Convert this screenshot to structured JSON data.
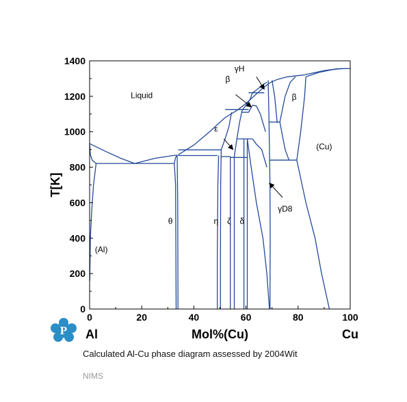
{
  "chart_data": {
    "type": "phase-diagram",
    "title": "",
    "xlabel": "Mol%(Cu)",
    "ylabel": "T[K]",
    "x_left_label": "Al",
    "x_right_label": "Cu",
    "xlim": [
      0,
      100
    ],
    "ylim": [
      0,
      1400
    ],
    "xticks": [
      0,
      20,
      40,
      60,
      80,
      100
    ],
    "yticks": [
      0,
      200,
      400,
      600,
      800,
      1000,
      1200,
      1400
    ],
    "grid": false,
    "line_color": "#22499a",
    "phase_labels": [
      {
        "text": "Liquid",
        "x": 20,
        "y": 1190
      },
      {
        "text": "(Al)",
        "x": 4.5,
        "y": 320
      },
      {
        "text": "(Cu)",
        "x": 90,
        "y": 900
      },
      {
        "text": "θ",
        "x": 31,
        "y": 480
      },
      {
        "text": "η",
        "x": 48.5,
        "y": 480
      },
      {
        "text": "ζ",
        "x": 53.5,
        "y": 480
      },
      {
        "text": "δ",
        "x": 58.5,
        "y": 480
      },
      {
        "text": "ε",
        "x": 48.5,
        "y": 1000
      },
      {
        "text": "β",
        "x": 53,
        "y": 1280
      },
      {
        "text": "γH",
        "x": 57.5,
        "y": 1340
      },
      {
        "text": "β",
        "x": 78.5,
        "y": 1180
      },
      {
        "text": "γD8",
        "x": 75,
        "y": 550
      }
    ],
    "annotation_arrows": [
      {
        "label": "β",
        "from": [
          56,
          1210
        ],
        "to": [
          62,
          1140
        ]
      },
      {
        "label": "γH",
        "from": [
          64,
          1310
        ],
        "to": [
          67,
          1240
        ]
      },
      {
        "label": "ε",
        "from": [
          51.5,
          960
        ],
        "to": [
          55,
          900
        ]
      },
      {
        "label": "γD8",
        "from": [
          74,
          630
        ],
        "to": [
          69,
          710
        ]
      }
    ],
    "phase_boundaries": [
      {
        "name": "liquidus-al-side",
        "points": [
          [
            0,
            933
          ],
          [
            6,
            890
          ],
          [
            12,
            850
          ],
          [
            17.3,
            821
          ]
        ]
      },
      {
        "name": "liquidus-theta",
        "points": [
          [
            17.3,
            821
          ],
          [
            25,
            850
          ],
          [
            32,
            866
          ],
          [
            33.5,
            868
          ]
        ]
      },
      {
        "name": "liquidus-mid",
        "points": [
          [
            34,
            870
          ],
          [
            40,
            925
          ],
          [
            46,
            1000
          ],
          [
            52,
            1080
          ],
          [
            57,
            1125
          ],
          [
            60,
            1160
          ],
          [
            63,
            1200
          ],
          [
            66,
            1240
          ],
          [
            69,
            1275
          ],
          [
            72,
            1295
          ],
          [
            76,
            1310
          ],
          [
            82,
            1320
          ],
          [
            90,
            1345
          ],
          [
            95,
            1355
          ],
          [
            100,
            1357
          ]
        ]
      },
      {
        "name": "solidus-cu",
        "points": [
          [
            83,
            1310
          ],
          [
            88,
            1335
          ],
          [
            93,
            1350
          ],
          [
            97,
            1357
          ]
        ]
      },
      {
        "name": "eutectic-al-theta",
        "points": [
          [
            2.5,
            821
          ],
          [
            32.5,
            821
          ]
        ]
      },
      {
        "name": "al-solidus",
        "points": [
          [
            0,
            933
          ],
          [
            0.3,
            870
          ],
          [
            1,
            840
          ],
          [
            2.5,
            821
          ]
        ]
      },
      {
        "name": "al-solvus",
        "points": [
          [
            2.5,
            821
          ],
          [
            1.5,
            700
          ],
          [
            0.8,
            550
          ],
          [
            0.3,
            400
          ],
          [
            0.05,
            160
          ]
        ]
      },
      {
        "name": "theta-left",
        "points": [
          [
            32.5,
            821
          ],
          [
            33,
            700
          ],
          [
            33.2,
            0
          ]
        ]
      },
      {
        "name": "theta-right",
        "points": [
          [
            33.6,
            868
          ],
          [
            33.8,
            600
          ],
          [
            33.9,
            0
          ]
        ]
      },
      {
        "name": "theta-cap",
        "points": [
          [
            32.5,
            821
          ],
          [
            33,
            855
          ],
          [
            33.6,
            868
          ]
        ]
      },
      {
        "name": "eutectic-theta-eta",
        "points": [
          [
            34,
            866
          ],
          [
            49,
            866
          ]
        ]
      },
      {
        "name": "peritectic-eta",
        "points": [
          [
            34,
            898
          ],
          [
            50.5,
            898
          ]
        ]
      },
      {
        "name": "eta-left",
        "points": [
          [
            49.5,
            866
          ],
          [
            49.2,
            700
          ],
          [
            49,
            300
          ],
          [
            49,
            0
          ]
        ]
      },
      {
        "name": "eta-right",
        "points": [
          [
            50.5,
            898
          ],
          [
            50.3,
            700
          ],
          [
            50.2,
            300
          ],
          [
            50.2,
            0
          ]
        ]
      },
      {
        "name": "eutectoid-eta-zeta",
        "points": [
          [
            50.3,
            860
          ],
          [
            54,
            860
          ]
        ]
      },
      {
        "name": "zeta-left",
        "points": [
          [
            54,
            860
          ],
          [
            54,
            0
          ]
        ]
      },
      {
        "name": "zeta-right",
        "points": [
          [
            55.5,
            860
          ],
          [
            55.5,
            0
          ]
        ]
      },
      {
        "name": "eutectoid-zeta-delta",
        "points": [
          [
            54,
            855
          ],
          [
            60.5,
            855
          ]
        ]
      },
      {
        "name": "delta-left",
        "points": [
          [
            59.2,
            960
          ],
          [
            59.2,
            0
          ]
        ]
      },
      {
        "name": "delta-right",
        "points": [
          [
            60.5,
            960
          ],
          [
            60.5,
            0
          ]
        ]
      },
      {
        "name": "peritectic-delta",
        "points": [
          [
            56.5,
            960
          ],
          [
            62.5,
            960
          ]
        ]
      },
      {
        "name": "epsilon-left",
        "points": [
          [
            50.5,
            898
          ],
          [
            52,
            960
          ],
          [
            53.5,
            1030
          ],
          [
            54.5,
            1110
          ]
        ]
      },
      {
        "name": "epsilon-right",
        "points": [
          [
            55.5,
            860
          ],
          [
            56.5,
            960
          ],
          [
            57.5,
            1050
          ],
          [
            58.5,
            1120
          ]
        ]
      },
      {
        "name": "peritectic-epsilon",
        "points": [
          [
            52,
            1125
          ],
          [
            61,
            1125
          ]
        ]
      },
      {
        "name": "beta-left-mid",
        "points": [
          [
            58.5,
            1120
          ],
          [
            60,
            1150
          ],
          [
            61.5,
            1180
          ],
          [
            62.5,
            1220
          ],
          [
            64,
            1235
          ]
        ]
      },
      {
        "name": "peritectic-beta-mid",
        "points": [
          [
            61,
            1220
          ],
          [
            67,
            1220
          ]
        ]
      },
      {
        "name": "epsilon-to-beta",
        "points": [
          [
            58.5,
            1110
          ],
          [
            61,
            1110
          ],
          [
            62.5,
            1150
          ]
        ]
      },
      {
        "name": "beta-gammaH",
        "points": [
          [
            62.5,
            1150
          ],
          [
            64,
            1145
          ],
          [
            65.5,
            1100
          ],
          [
            66.5,
            1050
          ],
          [
            67.5,
            1000
          ]
        ]
      },
      {
        "name": "gammaH-left",
        "points": [
          [
            64,
            1235
          ],
          [
            66,
            1260
          ],
          [
            68,
            1280
          ]
        ]
      },
      {
        "name": "gammaH-right",
        "points": [
          [
            70,
            1290
          ],
          [
            71,
            1200
          ],
          [
            72,
            1050
          ]
        ]
      },
      {
        "name": "gammaH-bottom",
        "points": [
          [
            62.5,
            960
          ],
          [
            64,
            930
          ],
          [
            66,
            900
          ],
          [
            67,
            850
          ],
          [
            68,
            800
          ]
        ]
      },
      {
        "name": "gammaD8-left",
        "points": [
          [
            60.5,
            960
          ],
          [
            62,
            800
          ],
          [
            64,
            600
          ],
          [
            66.5,
            400
          ],
          [
            68,
            200
          ],
          [
            69,
            0
          ]
        ]
      },
      {
        "name": "gammaD8-right",
        "points": [
          [
            68.5,
            1290
          ],
          [
            68.8,
            1100
          ],
          [
            69,
            900
          ],
          [
            69.2,
            700
          ],
          [
            69.3,
            400
          ],
          [
            69.2,
            0
          ]
        ]
      },
      {
        "name": "eutectoid-gamma-beta",
        "points": [
          [
            69,
            1055
          ],
          [
            73,
            1055
          ]
        ]
      },
      {
        "name": "beta-cu-left",
        "points": [
          [
            73,
            1055
          ],
          [
            75,
            1200
          ],
          [
            77,
            1280
          ],
          [
            79,
            1310
          ]
        ]
      },
      {
        "name": "beta-cu-right",
        "points": [
          [
            73,
            1055
          ],
          [
            75,
            900
          ],
          [
            76.5,
            840
          ]
        ]
      },
      {
        "name": "eutectoid-beta",
        "points": [
          [
            69,
            840
          ],
          [
            79.5,
            840
          ]
        ]
      },
      {
        "name": "beta-high-right",
        "points": [
          [
            79.5,
            840
          ],
          [
            81,
            1000
          ],
          [
            82.5,
            1200
          ],
          [
            83,
            1310
          ]
        ]
      },
      {
        "name": "cu-solvus",
        "points": [
          [
            79.5,
            840
          ],
          [
            83,
            600
          ],
          [
            86.5,
            400
          ],
          [
            89,
            200
          ],
          [
            92,
            0
          ]
        ]
      }
    ]
  },
  "caption": "Calculated Al-Cu phase diagram assessed by 2004Wit",
  "org": "NIMS",
  "logo_letter": "P",
  "logo_color": "#2a8ec7"
}
